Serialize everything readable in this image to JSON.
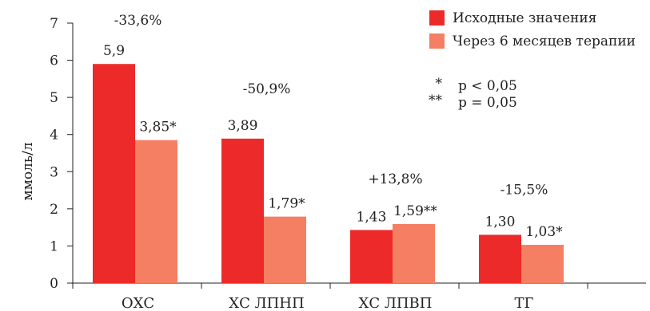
{
  "chart_data": {
    "type": "bar",
    "ylabel": "ммоль/л",
    "ylim": [
      0,
      7
    ],
    "yticks": [
      0,
      1,
      2,
      3,
      4,
      5,
      6,
      7
    ],
    "categories": [
      "ОХС",
      "ХС ЛПНП",
      "ХС ЛПВП",
      "ТГ"
    ],
    "series": [
      {
        "name": "Исходные значения",
        "color": "#ed2a2a",
        "values": [
          5.9,
          3.89,
          1.43,
          1.3
        ],
        "labels": [
          "5,9",
          "3,89",
          "1,43",
          "1,30"
        ]
      },
      {
        "name": "Через 6 месяцев терапии",
        "color": "#f47f63",
        "values": [
          3.85,
          1.79,
          1.59,
          1.03
        ],
        "labels": [
          "3,85*",
          "1,79*",
          "1,59**",
          "1,03*"
        ]
      }
    ],
    "changes": [
      "-33,6%",
      "-50,9%",
      "+13,8%",
      "-15,5%"
    ],
    "notes": [
      {
        "symbol": "*",
        "text": "p < 0,05"
      },
      {
        "symbol": "**",
        "text": "p = 0,05"
      }
    ],
    "legend_position": "top-right",
    "grid": false
  }
}
